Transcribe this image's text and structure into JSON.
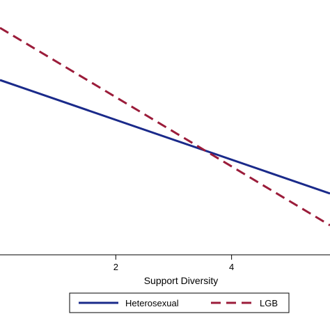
{
  "chart_data": {
    "type": "line",
    "title": "",
    "xlabel": "Support Diversity",
    "ylabel": "",
    "xlim": [
      0,
      5.7
    ],
    "ylim": [
      0,
      1
    ],
    "x_ticks": [
      2,
      4
    ],
    "x_tick_labels": [
      "2",
      "4"
    ],
    "grid": false,
    "legend_position": "bottom",
    "series": [
      {
        "name": "Heterosexual",
        "color": "#1a2a8a",
        "style": "solid",
        "x": [
          0,
          5.7
        ],
        "y": [
          0.77,
          0.27
        ]
      },
      {
        "name": "LGB",
        "color": "#9b1c3a",
        "style": "dashed",
        "x": [
          0,
          5.7
        ],
        "y": [
          1.0,
          0.13
        ]
      }
    ]
  }
}
